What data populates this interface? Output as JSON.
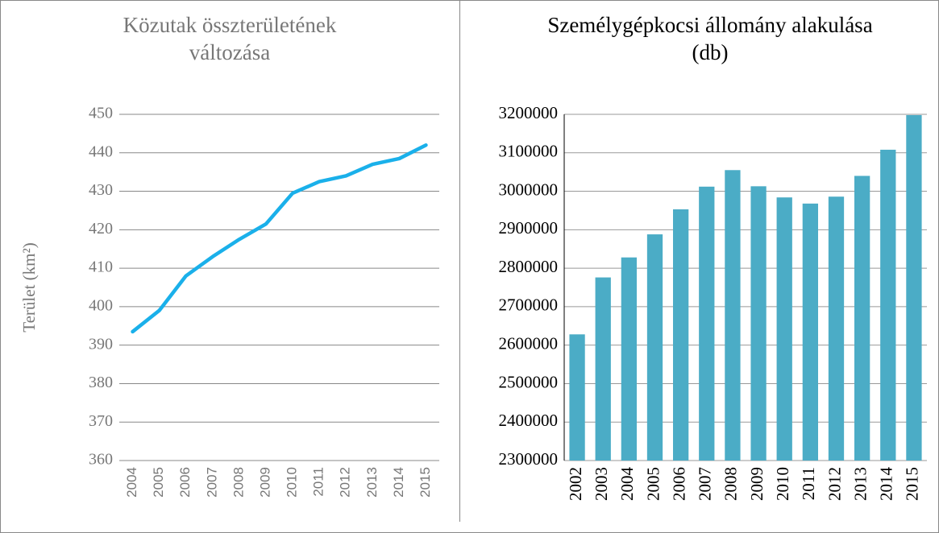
{
  "chart_data": [
    {
      "type": "line",
      "title": "Közutak összterületének változása",
      "y_label": "Terület (km²)",
      "categories": [
        "2004",
        "2005",
        "2006",
        "2007",
        "2008",
        "2009",
        "2010",
        "2011",
        "2012",
        "2013",
        "2014",
        "2015"
      ],
      "values": [
        393.5,
        399,
        408,
        413,
        417.5,
        421.5,
        429.5,
        432.5,
        434,
        437,
        438.5,
        442
      ],
      "color": "#1ab0ea",
      "ylim": [
        360,
        450
      ],
      "yticks": [
        360,
        370,
        380,
        390,
        400,
        410,
        420,
        430,
        440,
        450
      ],
      "grid": true
    },
    {
      "type": "bar",
      "title": "Személygépkocsi állomány alakulása (db)",
      "categories": [
        "2002",
        "2003",
        "2004",
        "2005",
        "2006",
        "2007",
        "2008",
        "2009",
        "2010",
        "2011",
        "2012",
        "2013",
        "2014",
        "2015"
      ],
      "values": [
        2628000,
        2776000,
        2828000,
        2888000,
        2953000,
        3012000,
        3055000,
        3013000,
        2984000,
        2968000,
        2986000,
        3040000,
        3108000,
        3198000
      ],
      "color": "#4bacc6",
      "ylim": [
        2300000,
        3200000
      ],
      "yticks": [
        2300000,
        2400000,
        2500000,
        2600000,
        2700000,
        2800000,
        2900000,
        3000000,
        3100000,
        3200000
      ],
      "grid": true
    }
  ]
}
